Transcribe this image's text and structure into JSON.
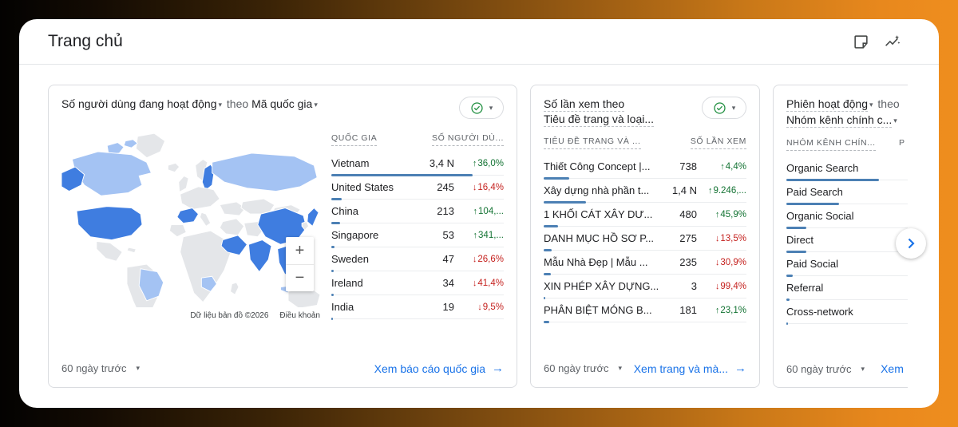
{
  "colors": {
    "accent_blue": "#1a73e8",
    "bar_blue": "#4c80b4",
    "up_green": "#137333",
    "down_red": "#c5221f",
    "check_green": "#1e8e3e",
    "map_country_default": "#e4e6e9",
    "map_country_low": "#a4c3f3",
    "map_country_high": "#3f7de0"
  },
  "window": {
    "title": "Trang chủ"
  },
  "header": {
    "icons": [
      "notes",
      "insights"
    ]
  },
  "cards": [
    {
      "title": {
        "metric": "Số người dùng đang hoạt động",
        "connector": "theo",
        "dimension": "Mã quốc gia"
      },
      "map": {
        "zoom_in": "+",
        "zoom_out": "−",
        "attribution": "Dữ liệu bản đồ ©2026",
        "terms_link": "Điều khoản"
      },
      "table": {
        "col1": "QUỐC GIA",
        "col2": "SỐ NGƯỜI DÙ...",
        "rows": [
          {
            "label": "Vietnam",
            "value": "3,4 N",
            "change": "36,0%",
            "dir": "up",
            "bar": 82
          },
          {
            "label": "United States",
            "value": "245",
            "change": "16,4%",
            "dir": "down",
            "bar": 6
          },
          {
            "label": "China",
            "value": "213",
            "change": "104,...",
            "dir": "up",
            "bar": 5
          },
          {
            "label": "Singapore",
            "value": "53",
            "change": "341,...",
            "dir": "up",
            "bar": 1.8
          },
          {
            "label": "Sweden",
            "value": "47",
            "change": "26,6%",
            "dir": "down",
            "bar": 1.4
          },
          {
            "label": "Ireland",
            "value": "34",
            "change": "41,4%",
            "dir": "down",
            "bar": 1.2
          },
          {
            "label": "India",
            "value": "19",
            "change": "9,5%",
            "dir": "down",
            "bar": 1
          }
        ]
      },
      "footer": {
        "range": "60 ngày trước",
        "link": "Xem báo cáo quốc gia"
      }
    },
    {
      "title": {
        "line1": "Số lần xem theo",
        "line2": "Tiêu đề trang và loại..."
      },
      "table": {
        "col1": "TIÊU ĐỀ TRANG VÀ ...",
        "col2": "SỐ LẦN XEM",
        "rows": [
          {
            "label": "Thiết Công Concept |...",
            "value": "738",
            "change": "4,4%",
            "dir": "up",
            "bar": 12.5
          },
          {
            "label": "Xây dựng nhà phần t...",
            "value": "1,4 N",
            "change": "9.246,...",
            "dir": "up",
            "bar": 21
          },
          {
            "label": "1 KHỐI CÁT XÂY DƯ...",
            "value": "480",
            "change": "45,9%",
            "dir": "up",
            "bar": 7
          },
          {
            "label": "DANH MỤC HỒ SƠ P...",
            "value": "275",
            "change": "13,5%",
            "dir": "down",
            "bar": 4
          },
          {
            "label": "Mẫu Nhà Đẹp | Mẫu ...",
            "value": "235",
            "change": "30,9%",
            "dir": "down",
            "bar": 3.5
          },
          {
            "label": "XIN PHÉP XÂY DỰNG...",
            "value": "3",
            "change": "99,4%",
            "dir": "down",
            "bar": 0.8
          },
          {
            "label": "PHÂN BIỆT MÓNG B...",
            "value": "181",
            "change": "23,1%",
            "dir": "up",
            "bar": 2.7
          }
        ]
      },
      "footer": {
        "range": "60 ngày trước",
        "link": "Xem trang và mà..."
      }
    },
    {
      "title": {
        "metric": "Phiên hoạt động",
        "connector": "theo",
        "dimension": "Nhóm kênh chính c..."
      },
      "table": {
        "col1": "NHÓM KÊNH CHÍN...",
        "col2": "P",
        "rows": [
          {
            "label": "Organic Search",
            "bar": 30
          },
          {
            "label": "Paid Search",
            "bar": 17
          },
          {
            "label": "Organic Social",
            "bar": 6.5
          },
          {
            "label": "Direct",
            "bar": 6.5
          },
          {
            "label": "Paid Social",
            "bar": 2
          },
          {
            "label": "Referral",
            "bar": 1
          },
          {
            "label": "Cross-network",
            "bar": 0.5
          }
        ]
      },
      "footer": {
        "range": "60 ngày trước",
        "link": "Xem"
      }
    }
  ]
}
